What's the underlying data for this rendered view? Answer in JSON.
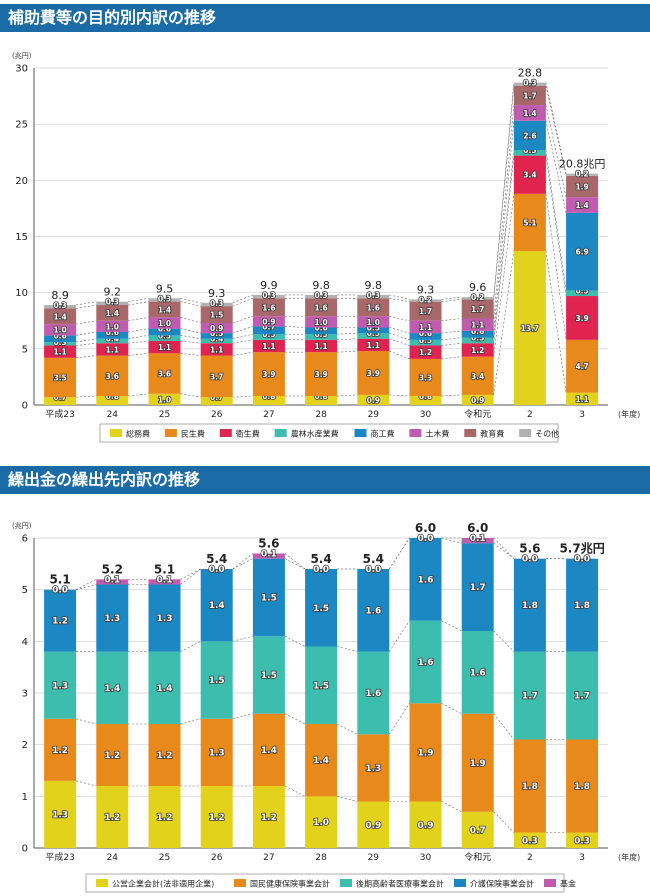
{
  "chart_data": [
    {
      "type": "bar",
      "title": "補助費等の目的別内訳の推移",
      "ylabel": "(兆円)",
      "xlabel": "(年度)",
      "ylim": [
        0,
        30
      ],
      "yticks": [
        0,
        5,
        10,
        15,
        20,
        25,
        30
      ],
      "categories": [
        "平成23",
        "24",
        "25",
        "26",
        "27",
        "28",
        "29",
        "30",
        "令和元",
        "2",
        "3"
      ],
      "totals": [
        "8.9",
        "9.2",
        "9.5",
        "9.3",
        "9.9",
        "9.8",
        "9.8",
        "9.3",
        "9.6",
        "28.8",
        "20.8兆円"
      ],
      "series": [
        {
          "name": "総務費",
          "color": "#e3d21c",
          "values": [
            0.7,
            0.8,
            1.0,
            0.7,
            0.8,
            0.8,
            0.9,
            0.8,
            0.9,
            13.7,
            1.1
          ]
        },
        {
          "name": "民生費",
          "color": "#e8891c",
          "values": [
            3.5,
            3.6,
            3.6,
            3.7,
            3.9,
            3.9,
            3.9,
            3.3,
            3.4,
            5.1,
            4.7
          ]
        },
        {
          "name": "衛生費",
          "color": "#e0244f",
          "values": [
            1.1,
            1.1,
            1.1,
            1.1,
            1.1,
            1.1,
            1.1,
            1.2,
            1.2,
            3.4,
            3.9
          ]
        },
        {
          "name": "農林水産業費",
          "color": "#3dbdad",
          "values": [
            0.3,
            0.4,
            0.5,
            0.4,
            0.5,
            0.5,
            0.5,
            0.5,
            0.5,
            0.5,
            0.5
          ]
        },
        {
          "name": "商工費",
          "color": "#1b87c3",
          "values": [
            0.6,
            0.6,
            0.6,
            0.5,
            0.7,
            0.6,
            0.5,
            0.6,
            0.6,
            2.6,
            6.9
          ]
        },
        {
          "name": "土木費",
          "color": "#c05cb0",
          "values": [
            1.0,
            1.0,
            1.0,
            0.9,
            0.9,
            1.0,
            1.0,
            1.1,
            1.1,
            1.4,
            1.4
          ]
        },
        {
          "name": "教育費",
          "color": "#a8686a",
          "values": [
            1.4,
            1.4,
            1.4,
            1.5,
            1.6,
            1.6,
            1.6,
            1.7,
            1.7,
            1.7,
            1.9
          ]
        },
        {
          "name": "その他",
          "color": "#b2b2b2",
          "values": [
            0.3,
            0.3,
            0.3,
            0.3,
            0.3,
            0.3,
            0.3,
            0.2,
            0.2,
            0.3,
            0.2
          ]
        }
      ]
    },
    {
      "type": "bar",
      "title": "繰出金の繰出先内訳の推移",
      "ylabel": "(兆円)",
      "xlabel": "(年度)",
      "ylim": [
        0,
        6
      ],
      "yticks": [
        0,
        1,
        2,
        3,
        4,
        5,
        6
      ],
      "categories": [
        "平成23",
        "24",
        "25",
        "26",
        "27",
        "28",
        "29",
        "30",
        "令和元",
        "2",
        "3"
      ],
      "totals": [
        "5.1",
        "5.2",
        "5.1",
        "5.4",
        "5.6",
        "5.4",
        "5.4",
        "6.0",
        "6.0",
        "5.6",
        "5.7兆円"
      ],
      "series": [
        {
          "name": "公営企業会計(法非適用企業)",
          "color": "#e3d21c",
          "values": [
            1.3,
            1.2,
            1.2,
            1.2,
            1.2,
            1.0,
            0.9,
            0.9,
            0.7,
            0.3,
            0.3
          ]
        },
        {
          "name": "国民健康保険事業会計",
          "color": "#e8891c",
          "values": [
            1.2,
            1.2,
            1.2,
            1.3,
            1.4,
            1.4,
            1.3,
            1.9,
            1.9,
            1.8,
            1.8
          ]
        },
        {
          "name": "後期高齢者医療事業会計",
          "color": "#3dbdad",
          "values": [
            1.3,
            1.4,
            1.4,
            1.5,
            1.5,
            1.5,
            1.6,
            1.6,
            1.6,
            1.7,
            1.7
          ]
        },
        {
          "name": "介護保険事業会計",
          "color": "#1b87c3",
          "values": [
            1.2,
            1.3,
            1.3,
            1.4,
            1.5,
            1.5,
            1.6,
            1.6,
            1.7,
            1.8,
            1.8
          ]
        },
        {
          "name": "基金",
          "color": "#c05cb0",
          "values": [
            0.0,
            0.1,
            0.1,
            0.0,
            0.1,
            0.0,
            0.0,
            0.0,
            0.1,
            0.0,
            0.0
          ]
        }
      ]
    }
  ]
}
